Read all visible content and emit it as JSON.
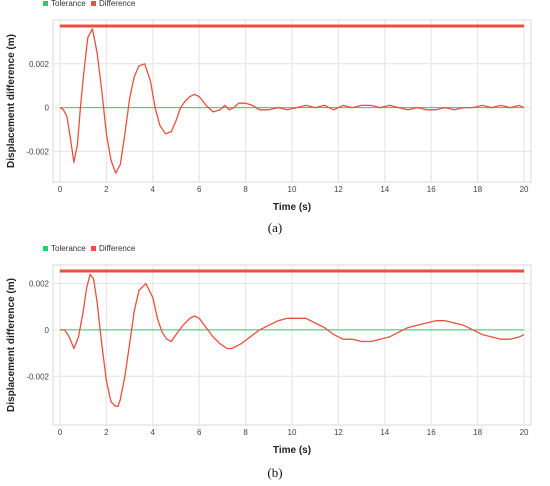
{
  "chart_data": [
    {
      "type": "line",
      "caption": "(a)",
      "xlabel": "Time (s)",
      "ylabel": "Displacement difference (m)",
      "xlim": [
        -0.3,
        20.3
      ],
      "ylim": [
        -0.0034,
        0.004
      ],
      "xticks": [
        0,
        2,
        4,
        6,
        8,
        10,
        12,
        14,
        16,
        18,
        20
      ],
      "x_tick_labels": [
        "0",
        "2",
        "4",
        "6",
        "8",
        "10",
        "12",
        "14",
        "16",
        "18",
        "20"
      ],
      "yticks": [
        -0.002,
        0,
        0.002
      ],
      "y_tick_labels": [
        "-0.002",
        "0",
        "0.002"
      ],
      "grid": true,
      "legend_position": "top-left",
      "series": [
        {
          "name": "Tolerance",
          "color": "#2ecc71",
          "x": [
            0,
            20
          ],
          "y": [
            0,
            0
          ]
        },
        {
          "name": "Difference",
          "color": "#e8513d",
          "x": [
            0,
            0.15,
            0.3,
            0.45,
            0.6,
            0.75,
            0.9,
            1.05,
            1.2,
            1.4,
            1.6,
            1.8,
            2.0,
            2.2,
            2.4,
            2.6,
            2.8,
            3.0,
            3.2,
            3.4,
            3.65,
            3.9,
            4.1,
            4.3,
            4.55,
            4.8,
            5.0,
            5.2,
            5.4,
            5.6,
            5.8,
            6.0,
            6.3,
            6.6,
            6.9,
            7.1,
            7.3,
            7.5,
            7.7,
            8.0,
            8.3,
            8.6,
            9.0,
            9.4,
            9.8,
            10.2,
            10.6,
            11.0,
            11.4,
            11.8,
            12.2,
            12.6,
            13.0,
            13.4,
            13.8,
            14.2,
            14.6,
            15.0,
            15.4,
            15.8,
            16.2,
            16.6,
            17.0,
            17.4,
            17.8,
            18.2,
            18.6,
            19.0,
            19.4,
            19.8,
            20.0
          ],
          "y": [
            0,
            -0.0001,
            -0.0004,
            -0.0014,
            -0.0025,
            -0.0017,
            0.0002,
            0.0018,
            0.0032,
            0.0036,
            0.0025,
            0.0008,
            -0.0012,
            -0.0024,
            -0.003,
            -0.0026,
            -0.0012,
            0.0004,
            0.0014,
            0.0019,
            0.002,
            0.0012,
            0.0,
            -0.0008,
            -0.0012,
            -0.0011,
            -0.0006,
            0.0,
            0.0003,
            0.0005,
            0.0006,
            0.0005,
            0.0001,
            -0.0002,
            -0.0001,
            0.0001,
            -0.0001,
            0.0,
            0.0002,
            0.0002,
            0.0001,
            -0.0001,
            -0.0001,
            0.0,
            -0.0001,
            0.0,
            0.0001,
            0.0,
            0.0001,
            -0.0001,
            0.0001,
            0.0,
            0.0001,
            0.0001,
            0.0,
            0.0001,
            0.0,
            -0.0001,
            0.0,
            -0.0001,
            -0.0001,
            0.0,
            -0.0001,
            0.0,
            0.0,
            0.0001,
            0.0,
            0.0001,
            0.0,
            0.0001,
            0.0
          ]
        }
      ]
    },
    {
      "type": "line",
      "caption": "(b)",
      "xlabel": "Time (s)",
      "ylabel": "Displacement difference (m)",
      "xlim": [
        -0.3,
        20.3
      ],
      "ylim": [
        -0.0041,
        0.0028
      ],
      "xticks": [
        0,
        2,
        4,
        6,
        8,
        10,
        12,
        14,
        16,
        18,
        20
      ],
      "x_tick_labels": [
        "0",
        "2",
        "4",
        "6",
        "8",
        "10",
        "12",
        "14",
        "16",
        "18",
        "20"
      ],
      "yticks": [
        -0.002,
        0,
        0.002
      ],
      "y_tick_labels": [
        "-0.002",
        "0",
        "0.002"
      ],
      "grid": true,
      "legend_position": "top-left",
      "series": [
        {
          "name": "Tolerance",
          "color": "#2ecc71",
          "x": [
            0,
            20
          ],
          "y": [
            0,
            0
          ]
        },
        {
          "name": "Difference",
          "color": "#e8513d",
          "x": [
            0,
            0.2,
            0.4,
            0.6,
            0.8,
            1.0,
            1.15,
            1.3,
            1.45,
            1.6,
            1.8,
            2.0,
            2.2,
            2.4,
            2.5,
            2.6,
            2.8,
            3.0,
            3.2,
            3.4,
            3.7,
            4.0,
            4.2,
            4.4,
            4.6,
            4.8,
            5.0,
            5.3,
            5.6,
            5.8,
            6.0,
            6.3,
            6.6,
            6.9,
            7.2,
            7.4,
            7.8,
            8.2,
            8.6,
            9.0,
            9.4,
            9.8,
            10.2,
            10.6,
            11.0,
            11.4,
            11.8,
            12.2,
            12.6,
            13.0,
            13.4,
            13.8,
            14.2,
            14.6,
            15.0,
            15.4,
            15.8,
            16.2,
            16.6,
            17.0,
            17.4,
            17.8,
            18.2,
            18.6,
            19.0,
            19.4,
            19.8,
            20.0
          ],
          "y": [
            0,
            0,
            -0.0003,
            -0.0008,
            -0.0003,
            0.0008,
            0.0018,
            0.0024,
            0.0022,
            0.0012,
            -0.0006,
            -0.0022,
            -0.0031,
            -0.0033,
            -0.0033,
            -0.003,
            -0.002,
            -0.0006,
            0.0008,
            0.0017,
            0.002,
            0.0014,
            0.0005,
            -0.0001,
            -0.0004,
            -0.0005,
            -0.0002,
            0.0002,
            0.0005,
            0.0006,
            0.0005,
            0.0001,
            -0.0003,
            -0.0006,
            -0.0008,
            -0.0008,
            -0.0006,
            -0.0003,
            0.0,
            0.0002,
            0.0004,
            0.0005,
            0.0005,
            0.0005,
            0.0003,
            0.0001,
            -0.0002,
            -0.0004,
            -0.0004,
            -0.0005,
            -0.0005,
            -0.0004,
            -0.0003,
            -0.0001,
            0.0001,
            0.0002,
            0.0003,
            0.0004,
            0.0004,
            0.0003,
            0.0002,
            0.0,
            -0.0002,
            -0.0003,
            -0.0004,
            -0.0004,
            -0.0003,
            -0.0002
          ]
        }
      ]
    }
  ]
}
